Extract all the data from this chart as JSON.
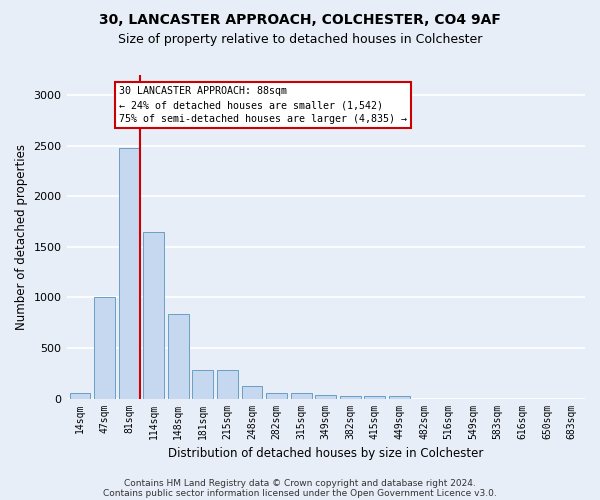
{
  "title1": "30, LANCASTER APPROACH, COLCHESTER, CO4 9AF",
  "title2": "Size of property relative to detached houses in Colchester",
  "xlabel": "Distribution of detached houses by size in Colchester",
  "ylabel": "Number of detached properties",
  "categories": [
    "14sqm",
    "47sqm",
    "81sqm",
    "114sqm",
    "148sqm",
    "181sqm",
    "215sqm",
    "248sqm",
    "282sqm",
    "315sqm",
    "349sqm",
    "382sqm",
    "415sqm",
    "449sqm",
    "482sqm",
    "516sqm",
    "549sqm",
    "583sqm",
    "616sqm",
    "650sqm",
    "683sqm"
  ],
  "values": [
    55,
    1000,
    2480,
    1650,
    840,
    280,
    280,
    120,
    55,
    55,
    35,
    25,
    30,
    25,
    0,
    0,
    0,
    0,
    0,
    0,
    0
  ],
  "bar_color": "#c5d8ef",
  "bar_edge_color": "#6a9ec5",
  "red_line_bar_index": 2,
  "highlight_color": "#cc0000",
  "annotation_text": "30 LANCASTER APPROACH: 88sqm\n← 24% of detached houses are smaller (1,542)\n75% of semi-detached houses are larger (4,835) →",
  "annotation_box_facecolor": "#ffffff",
  "annotation_box_edgecolor": "#cc0000",
  "ylim": [
    0,
    3200
  ],
  "yticks": [
    0,
    500,
    1000,
    1500,
    2000,
    2500,
    3000
  ],
  "background_color": "#e8eef8",
  "grid_color": "#ffffff",
  "footer1": "Contains HM Land Registry data © Crown copyright and database right 2024.",
  "footer2": "Contains public sector information licensed under the Open Government Licence v3.0."
}
